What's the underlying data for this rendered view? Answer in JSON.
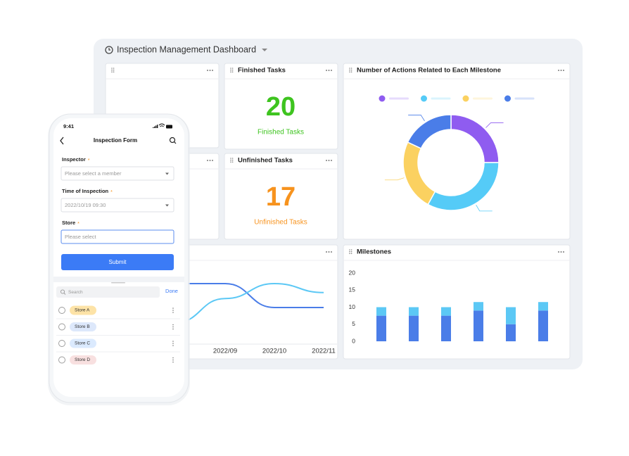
{
  "dashboard": {
    "title": "Inspection Management Dashboard"
  },
  "finished": {
    "title": "Finished Tasks",
    "value": 20,
    "label": "Finished Tasks",
    "color": "#3ec41f"
  },
  "unfinished": {
    "title": "Unfinished Tasks",
    "value": 17,
    "label": "Unfinished Tasks",
    "color": "#f7931e"
  },
  "chart_data": [
    {
      "type": "pie",
      "title": "Number of Actions Related to Each Milestone",
      "donut": true,
      "values": [
        25,
        33,
        24,
        18
      ],
      "colors": [
        "#8f5cf0",
        "#55cbf7",
        "#fbd160",
        "#4a7de8"
      ]
    },
    {
      "type": "line",
      "categories": [
        null,
        "2022/09",
        "2022/10",
        "2022/11"
      ],
      "ylim": [
        0,
        10
      ],
      "series": [
        {
          "color": "#4a7de8",
          "values": [
            8,
            8,
            4,
            4
          ]
        },
        {
          "color": "#5cc8f5",
          "values": [
            1.5,
            5.5,
            8,
            6.5
          ]
        }
      ]
    },
    {
      "type": "bar",
      "title": "Milestones",
      "stacked": true,
      "grid": false,
      "categories": [
        null,
        null,
        null,
        null,
        null,
        null
      ],
      "ylim": [
        0,
        20
      ],
      "yticks": [
        0,
        5,
        10,
        15,
        20
      ],
      "series": [
        {
          "color": "#4a7de8",
          "values": [
            7.5,
            7.5,
            7.5,
            9,
            5,
            9
          ]
        },
        {
          "color": "#5cc8f5",
          "values": [
            2.5,
            2.5,
            2.5,
            2.5,
            5,
            2.5
          ]
        }
      ]
    }
  ],
  "form": {
    "time": "9:41",
    "title": "Inspection Form",
    "fields": [
      {
        "label": "Inspector",
        "required": "*",
        "value": "Please select a member"
      },
      {
        "label": "Time of Inspection",
        "required": "*",
        "value": "2022/10/19 09:30"
      },
      {
        "label": "Store",
        "required": "*",
        "value": "Please select"
      }
    ],
    "submit": "Submit",
    "search": "Search",
    "done": "Done",
    "stores": [
      {
        "name": "Store A",
        "color": "#fde3a7"
      },
      {
        "name": "Store B",
        "color": "#dde8fb"
      },
      {
        "name": "Store C",
        "color": "#dbeafe"
      },
      {
        "name": "Store D",
        "color": "#f8e0e0"
      }
    ]
  }
}
